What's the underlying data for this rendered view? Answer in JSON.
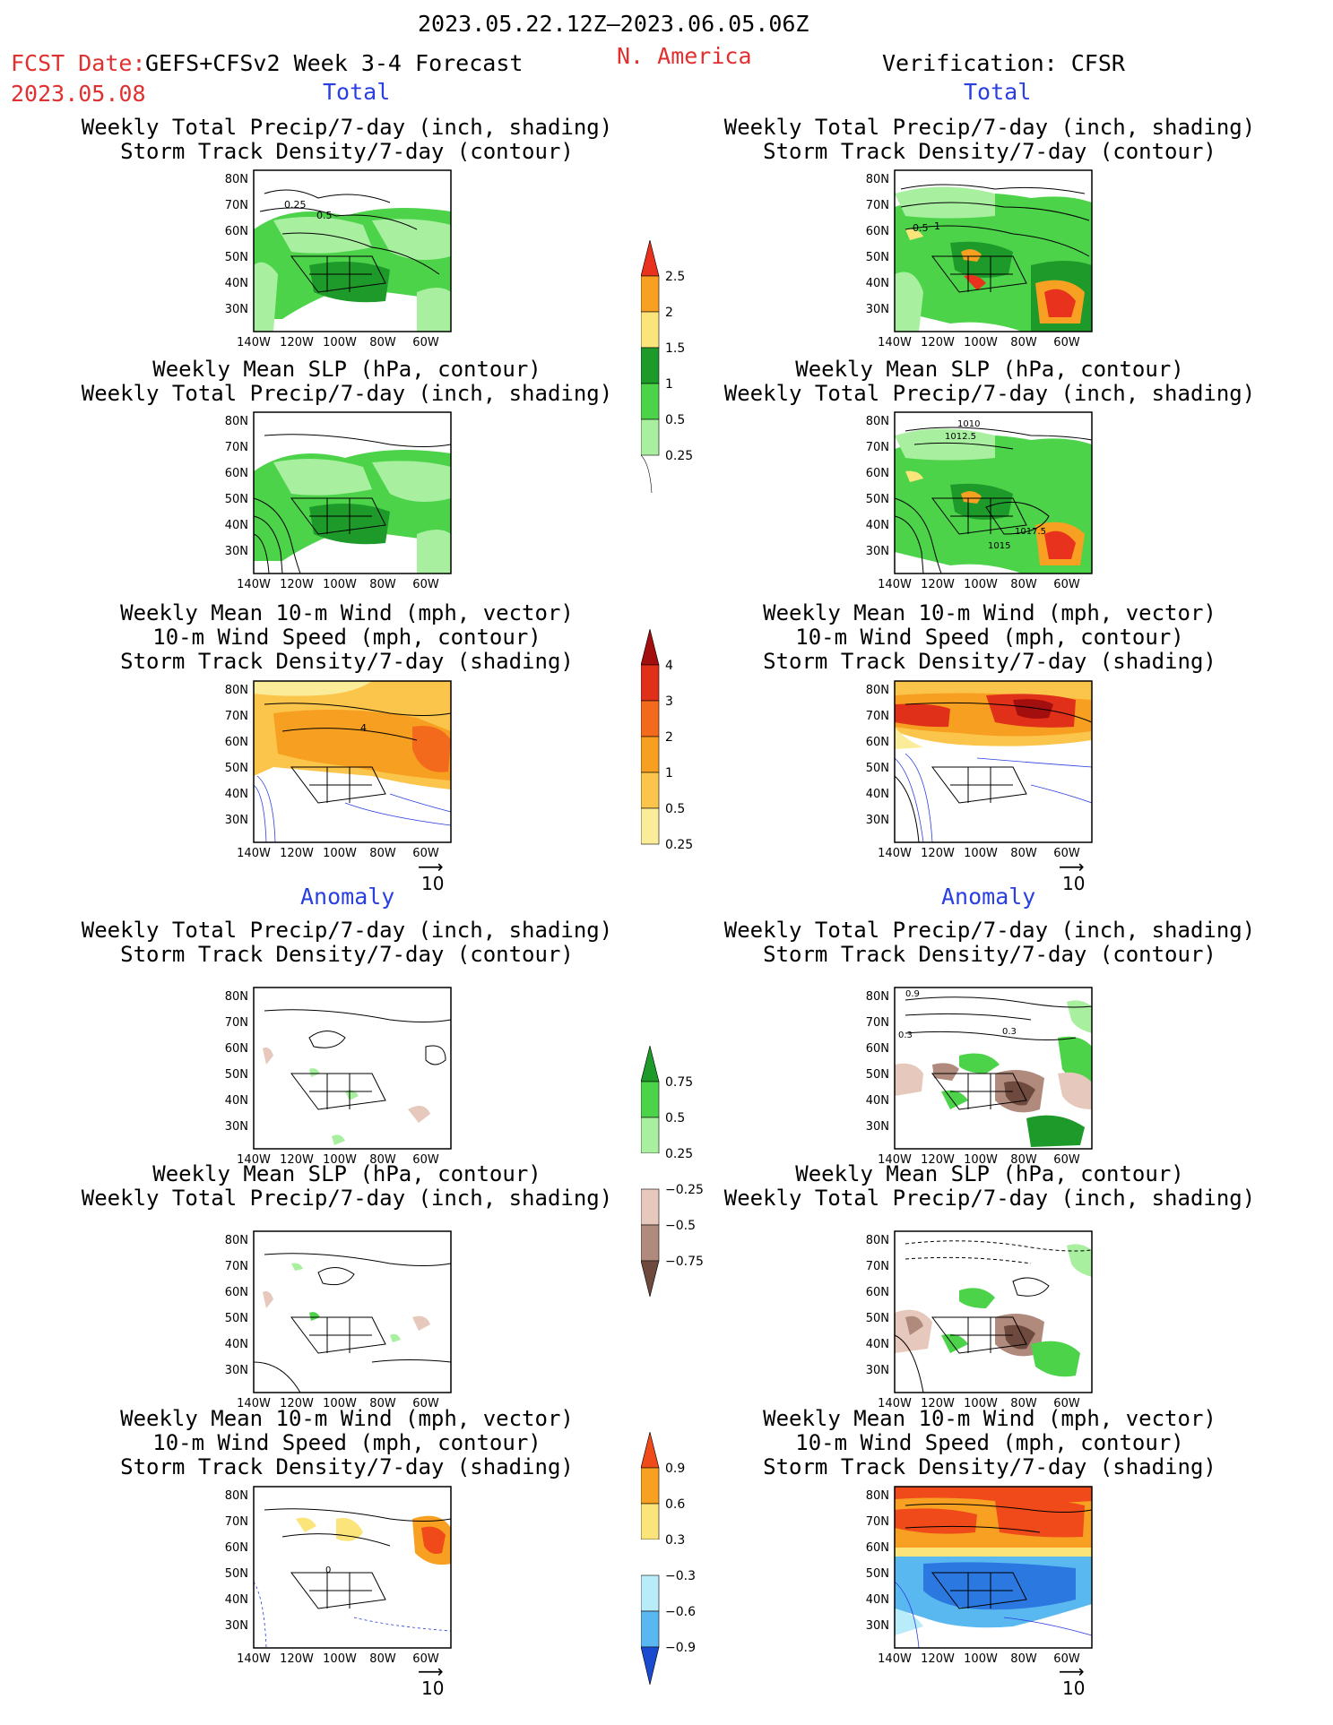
{
  "header": {
    "date_range": "2023.05.22.12Z–2023.06.05.06Z",
    "fcst_label": "FCST Date:",
    "fcst_model": "GEFS+CFSv2 Week 3-4 Forecast",
    "fcst_date": "2023.05.08",
    "region": "N. America",
    "verification": "Verification: CFSR"
  },
  "sections": {
    "total": "Total",
    "anomaly": "Anomaly"
  },
  "axes": {
    "lat_ticks": [
      "80N",
      "70N",
      "60N",
      "50N",
      "40N",
      "30N"
    ],
    "lon_ticks": [
      "140W",
      "120W",
      "100W",
      "80W",
      "60W"
    ]
  },
  "titles": {
    "precip_storm": [
      "Weekly Total Precip/7-day (inch, shading)",
      "Storm Track Density/7-day (contour)"
    ],
    "slp_precip": [
      "Weekly Mean SLP (hPa, contour)",
      "Weekly Total Precip/7-day (inch, shading)"
    ],
    "wind_storm": [
      "Weekly Mean 10-m Wind (mph, vector)",
      "10-m Wind Speed (mph, contour)",
      "Storm Track Density/7-day (shading)"
    ]
  },
  "vector_ref": "10",
  "contour_labels": {
    "fc_precip_total": [
      "0.25",
      "0.5"
    ],
    "obs_precip_total": [
      "0.5",
      "1"
    ],
    "obs_slp_total": [
      "1010",
      "1012.5",
      "1017.5",
      "1015"
    ],
    "fc_wind_total": [
      "4"
    ],
    "obs_precip_anom": [
      "0.9",
      "0.3",
      "0.3"
    ],
    "fc_wind_anom": [
      "0"
    ]
  },
  "colorbars": {
    "precip_total": {
      "labels": [
        "2.5",
        "2",
        "1.5",
        "1",
        "0.5",
        "0.25"
      ],
      "colors": [
        "#e8321e",
        "#f7a021",
        "#fbe47a",
        "#1e9a2a",
        "#4cd34a",
        "#a8f0a0"
      ]
    },
    "storm_total": {
      "labels": [
        "4",
        "3",
        "2",
        "1",
        "0.5",
        "0.25"
      ],
      "colors": [
        "#a30e0e",
        "#e0301a",
        "#f46a1c",
        "#f79f20",
        "#fbc44a",
        "#fbec9a"
      ]
    },
    "precip_anom": {
      "labels": [
        "0.75",
        "0.5",
        "0.25",
        "−0.25",
        "−0.5",
        "−0.75"
      ],
      "colors": [
        "#1e9a2a",
        "#4cd34a",
        "#a8f0a0",
        "#ffffff",
        "#e6c8bc",
        "#b08a7c",
        "#6e4a3e"
      ]
    },
    "storm_anom": {
      "labels": [
        "0.9",
        "0.6",
        "0.3",
        "−0.3",
        "−0.6",
        "−0.9"
      ],
      "colors": [
        "#f04a1a",
        "#f7a021",
        "#fbe47a",
        "#ffffff",
        "#b8ecf8",
        "#5ab8f0",
        "#2a78e0",
        "#1a4ad0"
      ]
    }
  },
  "colors": {
    "red_text": "#e03030",
    "blue_text": "#2a3fe0"
  }
}
